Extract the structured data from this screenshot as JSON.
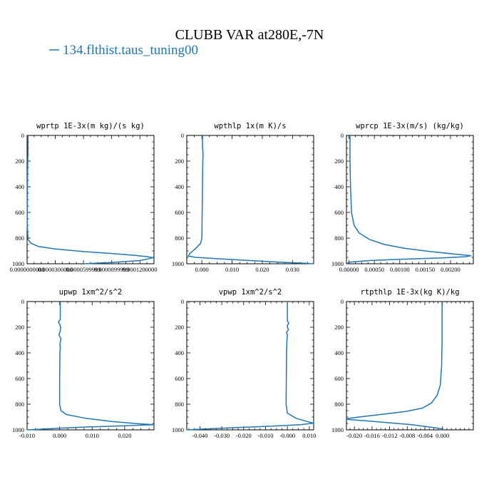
{
  "figure": {
    "title": "CLUBB VAR at280E,-7N",
    "legend_label": "134.flthist.taus_tuning00",
    "series_color": "#1f77b4"
  },
  "chart_data": [
    {
      "type": "line",
      "title": "wprtp  1E-3x(m kg)/(s kg)",
      "xlim": [
        0,
        0.000135
      ],
      "ylim": [
        1000,
        0
      ],
      "yticks": [
        "0",
        "200",
        "400",
        "600",
        "800",
        "1000"
      ],
      "xticks": [
        "0.0000000000",
        "0.0000300000",
        "0.0000599999",
        "0.0000899999",
        "0.0001200000"
      ],
      "xtick_values": [
        0,
        3e-05,
        6e-05,
        9e-05,
        0.00012
      ],
      "series": [
        {
          "points": [
            [
              1e-06,
              0
            ],
            [
              1e-06,
              100
            ],
            [
              5e-07,
              300
            ],
            [
              3e-07,
              500
            ],
            [
              2e-07,
              700
            ],
            [
              1e-06,
              810
            ],
            [
              4e-06,
              840
            ],
            [
              1.2e-05,
              865
            ],
            [
              3e-05,
              885
            ],
            [
              6e-05,
              905
            ],
            [
              9e-05,
              920
            ],
            [
              0.000115,
              935
            ],
            [
              0.000128,
              945
            ],
            [
              0.000134,
              952
            ],
            [
              0.00013,
              960
            ],
            [
              0.00012,
              975
            ],
            [
              9e-05,
              990
            ],
            [
              6e-05,
              1000
            ]
          ]
        }
      ]
    },
    {
      "type": "line",
      "title": "wpthlp  1x(m K)/s",
      "xlim": [
        -0.005,
        0.037
      ],
      "ylim": [
        1000,
        0
      ],
      "yticks": [
        "0",
        "200",
        "400",
        "600",
        "800",
        "1000"
      ],
      "xticks": [
        "0.000",
        "0.010",
        "0.020",
        "0.030"
      ],
      "xtick_values": [
        0,
        0.01,
        0.02,
        0.03
      ],
      "series": [
        {
          "points": [
            [
              0.0002,
              0
            ],
            [
              0.0002,
              80
            ],
            [
              0.0004,
              150
            ],
            [
              0.0003,
              200
            ],
            [
              0.0002,
              400
            ],
            [
              0.0001,
              600
            ],
            [
              0,
              800
            ],
            [
              -0.0004,
              840
            ],
            [
              -0.002,
              880
            ],
            [
              -0.004,
              920
            ],
            [
              -0.0045,
              940
            ],
            [
              -0.002,
              950
            ],
            [
              0.006,
              962
            ],
            [
              0.016,
              975
            ],
            [
              0.026,
              988
            ],
            [
              0.034,
              996
            ],
            [
              0.037,
              1000
            ]
          ]
        }
      ]
    },
    {
      "type": "line",
      "title": "wprcp  1E-3x(m/s) (kg/kg)",
      "xlim": [
        -5e-05,
        0.00245
      ],
      "ylim": [
        1000,
        0
      ],
      "yticks": [
        "0",
        "200",
        "400",
        "600",
        "800",
        "1000"
      ],
      "xticks": [
        "0.00000",
        "0.00050",
        "0.00100",
        "0.00150",
        "0.00200"
      ],
      "xtick_values": [
        0,
        0.0005,
        0.001,
        0.0015,
        0.002
      ],
      "series": [
        {
          "points": [
            [
              2e-05,
              0
            ],
            [
              2e-05,
              200
            ],
            [
              3e-05,
              400
            ],
            [
              5e-05,
              600
            ],
            [
              0.0001,
              700
            ],
            [
              0.0002,
              760
            ],
            [
              0.0004,
              810
            ],
            [
              0.0007,
              850
            ],
            [
              0.0011,
              880
            ],
            [
              0.0016,
              905
            ],
            [
              0.0021,
              925
            ],
            [
              0.0024,
              937
            ],
            [
              0.0023,
              945
            ],
            [
              0.0018,
              955
            ],
            [
              0.001,
              965
            ],
            [
              0.0004,
              975
            ],
            [
              0,
              988
            ],
            [
              -4e-05,
              1000
            ]
          ]
        }
      ]
    },
    {
      "type": "line",
      "title": "upwp  1xm^2/s^2",
      "xlim": [
        -0.01,
        0.029
      ],
      "ylim": [
        1000,
        0
      ],
      "yticks": [
        "0",
        "200",
        "400",
        "600",
        "800",
        "1000"
      ],
      "xticks": [
        "-0.010",
        "0.000",
        "0.010",
        "0.020"
      ],
      "xtick_values": [
        -0.01,
        0,
        0.01,
        0.02
      ],
      "series": [
        {
          "points": [
            [
              0.0002,
              0
            ],
            [
              0.0002,
              140
            ],
            [
              -0.0004,
              160
            ],
            [
              0,
              175
            ],
            [
              0.0003,
              200
            ],
            [
              0.0002,
              230
            ],
            [
              -0.0002,
              260
            ],
            [
              0.0004,
              290
            ],
            [
              0.0001,
              330
            ],
            [
              0.0002,
              360
            ],
            [
              0.0001,
              400
            ],
            [
              0,
              600
            ],
            [
              0,
              800
            ],
            [
              0.0004,
              850
            ],
            [
              0.002,
              880
            ],
            [
              0.008,
              910
            ],
            [
              0.016,
              935
            ],
            [
              0.024,
              952
            ],
            [
              0.029,
              960
            ],
            [
              0.02,
              968
            ],
            [
              0.008,
              978
            ],
            [
              -0.001,
              988
            ],
            [
              -0.006,
              995
            ],
            [
              -0.01,
              1000
            ]
          ]
        }
      ]
    },
    {
      "type": "line",
      "title": "vpwp  1xm^2/s^2",
      "xlim": [
        -0.046,
        0.012
      ],
      "ylim": [
        1000,
        0
      ],
      "yticks": [
        "0",
        "200",
        "400",
        "600",
        "800",
        "1000"
      ],
      "xticks": [
        "-0.040",
        "-0.030",
        "-0.020",
        "-0.010",
        "-0.000",
        "0.010"
      ],
      "xtick_values": [
        -0.04,
        -0.03,
        -0.02,
        -0.01,
        0,
        0.01
      ],
      "series": [
        {
          "points": [
            [
              0,
              0
            ],
            [
              0,
              150
            ],
            [
              0.0006,
              170
            ],
            [
              0,
              185
            ],
            [
              0,
              200
            ],
            [
              0.0005,
              220
            ],
            [
              -0.0004,
              240
            ],
            [
              0,
              260
            ],
            [
              -0.0002,
              300
            ],
            [
              -0.0004,
              400
            ],
            [
              -0.0005,
              600
            ],
            [
              -0.0006,
              800
            ],
            [
              0,
              870
            ],
            [
              0.004,
              910
            ],
            [
              0.009,
              935
            ],
            [
              0.012,
              948
            ],
            [
              0.006,
              960
            ],
            [
              -0.006,
              970
            ],
            [
              -0.02,
              980
            ],
            [
              -0.034,
              990
            ],
            [
              -0.046,
              1000
            ]
          ]
        }
      ]
    },
    {
      "type": "line",
      "title": "rtpthlp  1E-3x(kg K)/kg",
      "xlim": [
        -0.0218,
        0.007
      ],
      "ylim": [
        1000,
        0
      ],
      "yticks": [
        "0",
        "200",
        "400",
        "600",
        "800",
        "1000"
      ],
      "xticks": [
        "-0.020",
        "-0.016",
        "-0.012",
        "-0.008",
        "-0.004",
        "0.000"
      ],
      "xtick_values": [
        -0.02,
        -0.016,
        -0.012,
        -0.008,
        -0.004,
        0
      ],
      "series": [
        {
          "points": [
            [
              -0.0001,
              0
            ],
            [
              -0.0001,
              300
            ],
            [
              -0.0002,
              500
            ],
            [
              -0.0005,
              650
            ],
            [
              -0.0012,
              730
            ],
            [
              -0.0025,
              790
            ],
            [
              -0.0045,
              830
            ],
            [
              -0.008,
              855
            ],
            [
              -0.012,
              872
            ],
            [
              -0.016,
              888
            ],
            [
              -0.019,
              900
            ],
            [
              -0.0215,
              912
            ],
            [
              -0.0218,
              918
            ],
            [
              -0.018,
              928
            ],
            [
              -0.012,
              945
            ],
            [
              -0.007,
              960
            ],
            [
              -0.003,
              978
            ],
            [
              0,
              992
            ],
            [
              0.0003,
              1000
            ]
          ]
        }
      ]
    }
  ]
}
